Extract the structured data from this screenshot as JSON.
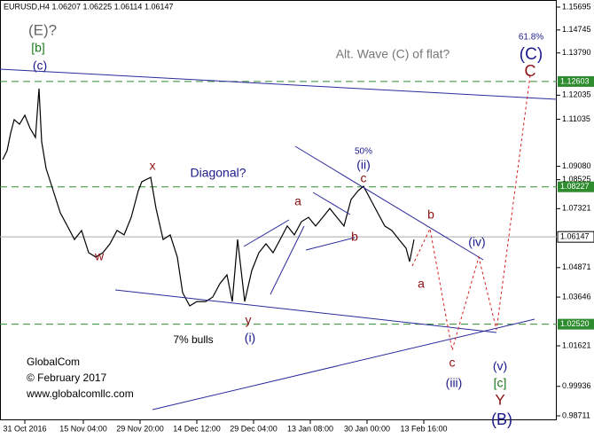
{
  "chart_data": {
    "type": "line",
    "title": "EURUSD,H4 1.06207 1.06225 1.06114 1.06147",
    "series": [
      {
        "name": "EURUSD,H4",
        "color": "#000000",
        "x": [
          0.75,
          2,
          3,
          4,
          5.5,
          7,
          8.5,
          10,
          11,
          11.75,
          13,
          15,
          17,
          19,
          21,
          23,
          25,
          27,
          29,
          31,
          33,
          35,
          37,
          39,
          40,
          42.5,
          44,
          46,
          48,
          50,
          51.5,
          53.5,
          55.5,
          58,
          60,
          62,
          64,
          65.5,
          67,
          69,
          71,
          73,
          75,
          77,
          79,
          81,
          83,
          85,
          87,
          89,
          91,
          93,
          95,
          97,
          99,
          101,
          102.5,
          104.5,
          106.5,
          108.5,
          110.5,
          112.5,
          114.5,
          115.5,
          116.75
        ],
        "values": [
          1.0936,
          1.0973,
          1.1046,
          1.1102,
          1.1083,
          1.112,
          1.1065,
          1.1028,
          1.1231,
          1.101,
          1.0899,
          1.0807,
          1.0715,
          1.066,
          1.0604,
          1.0641,
          1.0549,
          1.0531,
          1.0549,
          1.0586,
          1.0641,
          1.0623,
          1.0696,
          1.0807,
          1.0844,
          1.0862,
          1.0733,
          1.0604,
          1.0623,
          1.0531,
          1.0383,
          1.0328,
          1.0346,
          1.0346,
          1.0365,
          1.042,
          1.0457,
          1.0346,
          1.0604,
          1.0346,
          1.0475,
          1.0549,
          1.0586,
          1.0549,
          1.0604,
          1.066,
          1.0623,
          1.0678,
          1.0696,
          1.066,
          1.0696,
          1.0733,
          1.0696,
          1.066,
          1.077,
          1.0807,
          1.0825,
          1.077,
          1.0715,
          1.066,
          1.0641,
          1.0604,
          1.0568,
          1.0512,
          1.0604
        ]
      }
    ],
    "xlim": [
      0,
      157
    ],
    "ylim": [
      0.9838,
      1.1599
    ],
    "xticks": [
      {
        "value": 7,
        "label": "31 Oct 2016"
      },
      {
        "value": 23.5,
        "label": "15 Nov 04:00"
      },
      {
        "value": 39.5,
        "label": "29 Nov 20:00"
      },
      {
        "value": 55.5,
        "label": "14 Dec 12:00"
      },
      {
        "value": 71.5,
        "label": "29 Dec 04:00"
      },
      {
        "value": 87.5,
        "label": "13 Jan 08:00"
      },
      {
        "value": 103.5,
        "label": "30 Jan 00:00"
      },
      {
        "value": 119.5,
        "label": "13 Feb 16:00"
      }
    ],
    "yticks": [
      1.15695,
      1.14745,
      {
        "value": 1.1379,
        "label": "1.13790"
      },
      1.12035,
      1.11035,
      {
        "value": 1.0908,
        "label": "1.09080"
      },
      1.08525,
      1.07321,
      1.04871,
      1.03646,
      1.01621,
      0.99936,
      0.98711
    ],
    "levels": [
      1.12603,
      1.08227,
      {
        "value": 1.0252,
        "label": "1.02520"
      }
    ],
    "level_color": "#2e8b2e",
    "current_price": 1.06147,
    "annotations": [
      "(E)?",
      "[b]",
      "(c)",
      "x",
      "w",
      "Diagonal?",
      "7% bulls",
      "y",
      "(i)",
      "a",
      "b",
      "50%",
      "(ii)",
      "c",
      "b",
      "a",
      "(iv)",
      "c",
      "(iii)",
      "(v)",
      "[c]",
      "Y",
      "(B)",
      "Alt. Wave (C) of flat?",
      "61.8%",
      "(C)",
      "C"
    ],
    "watermark": [
      "GlobalCom",
      "© February 2017",
      "www.globalcomllc.com"
    ]
  }
}
